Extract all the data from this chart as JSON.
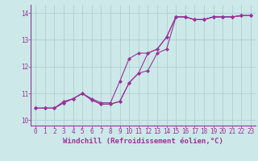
{
  "bg_color": "#cce8e8",
  "grid_color": "#aacccc",
  "line_color": "#993399",
  "marker_color": "#993399",
  "xlabel": "Windchill (Refroidissement éolien,°C)",
  "xlabel_fontsize": 6.5,
  "tick_fontsize": 5.5,
  "xlim": [
    -0.5,
    23.5
  ],
  "ylim": [
    9.8,
    14.3
  ],
  "yticks": [
    10,
    11,
    12,
    13,
    14
  ],
  "xticks": [
    0,
    1,
    2,
    3,
    4,
    5,
    6,
    7,
    8,
    9,
    10,
    11,
    12,
    13,
    14,
    15,
    16,
    17,
    18,
    19,
    20,
    21,
    22,
    23
  ],
  "series1_x": [
    0,
    1,
    2,
    3,
    4,
    5,
    6,
    7,
    8,
    9,
    10,
    11,
    12,
    13,
    14,
    15,
    16,
    17,
    18,
    19,
    20,
    21,
    22,
    23
  ],
  "series1_y": [
    10.45,
    10.45,
    10.45,
    10.7,
    10.8,
    11.0,
    10.75,
    10.6,
    10.6,
    10.7,
    11.4,
    11.75,
    12.5,
    12.65,
    13.1,
    13.85,
    13.85,
    13.75,
    13.75,
    13.85,
    13.85,
    13.85,
    13.9,
    13.9
  ],
  "series2_x": [
    0,
    1,
    2,
    3,
    4,
    5,
    6,
    7,
    8,
    9,
    10,
    11,
    12,
    13,
    14,
    15,
    16,
    17,
    18,
    19,
    20,
    21,
    22,
    23
  ],
  "series2_y": [
    10.45,
    10.45,
    10.45,
    10.65,
    10.8,
    11.0,
    10.8,
    10.65,
    10.65,
    11.45,
    12.3,
    12.5,
    12.5,
    12.65,
    13.1,
    13.85,
    13.85,
    13.75,
    13.75,
    13.85,
    13.85,
    13.85,
    13.9,
    13.9
  ],
  "series3_x": [
    0,
    1,
    2,
    3,
    4,
    5,
    6,
    7,
    8,
    9,
    10,
    11,
    12,
    13,
    14,
    15,
    16,
    17,
    18,
    19,
    20,
    21,
    22,
    23
  ],
  "series3_y": [
    10.45,
    10.45,
    10.45,
    10.65,
    10.8,
    11.0,
    10.75,
    10.6,
    10.6,
    10.7,
    11.4,
    11.75,
    11.85,
    12.5,
    12.65,
    13.85,
    13.85,
    13.75,
    13.75,
    13.85,
    13.85,
    13.85,
    13.9,
    13.9
  ]
}
